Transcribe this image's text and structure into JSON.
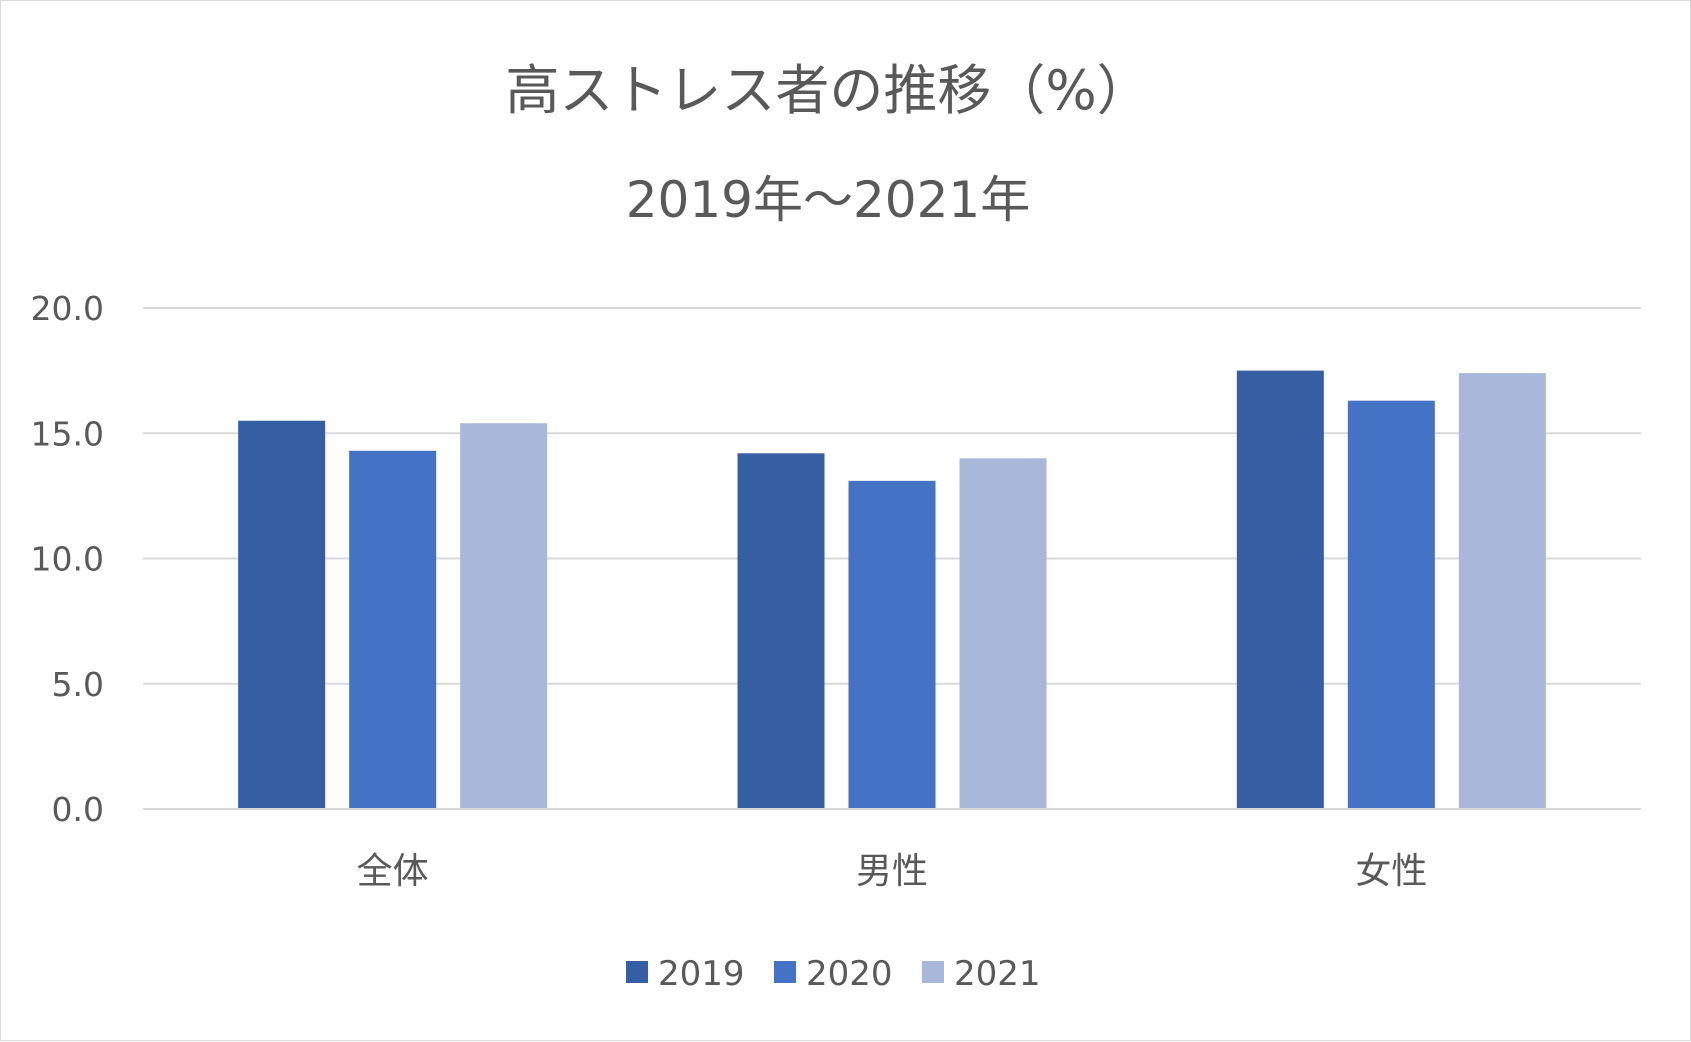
{
  "chart_data": {
    "type": "bar",
    "title": "高ストレス者の推移（%）",
    "subtitle": "2019年～2021年",
    "categories": [
      "全体",
      "男性",
      "女性"
    ],
    "series": [
      {
        "name": "2019",
        "color": "#365fa3",
        "values": [
          15.5,
          14.2,
          17.5
        ]
      },
      {
        "name": "2020",
        "color": "#4472c4",
        "values": [
          14.3,
          13.1,
          16.3
        ]
      },
      {
        "name": "2021",
        "color": "#a9b7da",
        "values": [
          15.4,
          14.0,
          17.4
        ]
      }
    ],
    "xlabel": "",
    "ylabel": "",
    "ylim": [
      0,
      20
    ],
    "yticks": [
      "0.0",
      "5.0",
      "10.0",
      "15.0",
      "20.0"
    ],
    "grid": true,
    "legend_position": "bottom"
  }
}
